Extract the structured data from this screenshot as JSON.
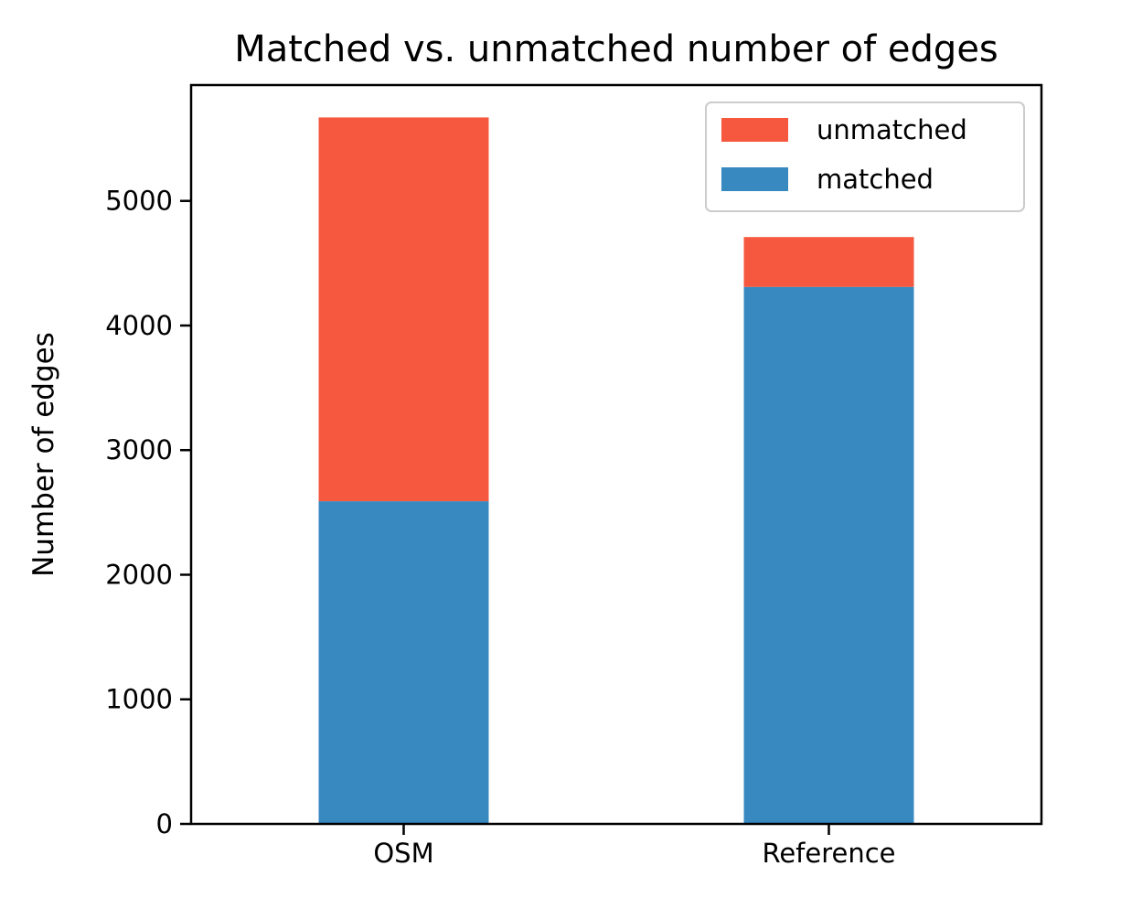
{
  "chart_data": {
    "type": "bar",
    "stacked": true,
    "title": "Matched vs. unmatched number of edges",
    "xlabel": "",
    "ylabel": "Number of edges",
    "categories": [
      "OSM",
      "Reference"
    ],
    "series": [
      {
        "name": "matched",
        "color": "#3989c1",
        "values": [
          2590,
          4310
        ]
      },
      {
        "name": "unmatched",
        "color": "#f5573f",
        "values": [
          3080,
          400
        ]
      }
    ],
    "ylim": [
      0,
      5930
    ],
    "yticks": [
      0,
      1000,
      2000,
      3000,
      4000,
      5000
    ],
    "grid": false,
    "legend": {
      "position": "top-right",
      "order": [
        "unmatched",
        "matched"
      ]
    }
  }
}
